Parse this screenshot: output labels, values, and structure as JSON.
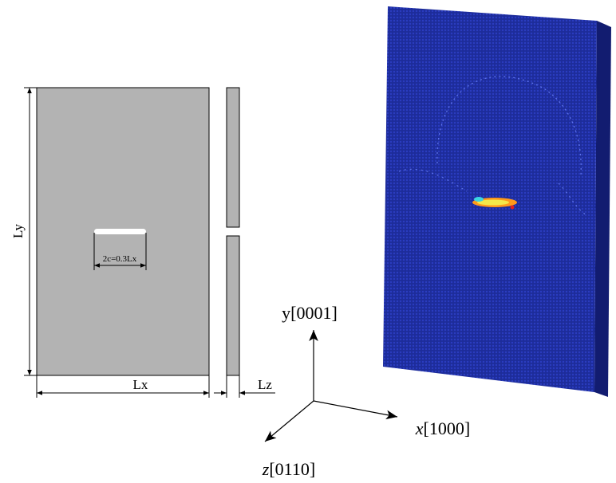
{
  "dimensions": {
    "height": "Ly",
    "width": "Lx",
    "thickness": "Lz",
    "crack": "2c=0.3Lx"
  },
  "axes": {
    "y": {
      "symbol": "y",
      "index": "[0001]"
    },
    "x": {
      "symbol": "x",
      "index": "[1000]"
    },
    "z": {
      "symbol": "z",
      "index": "[0110]"
    }
  }
}
